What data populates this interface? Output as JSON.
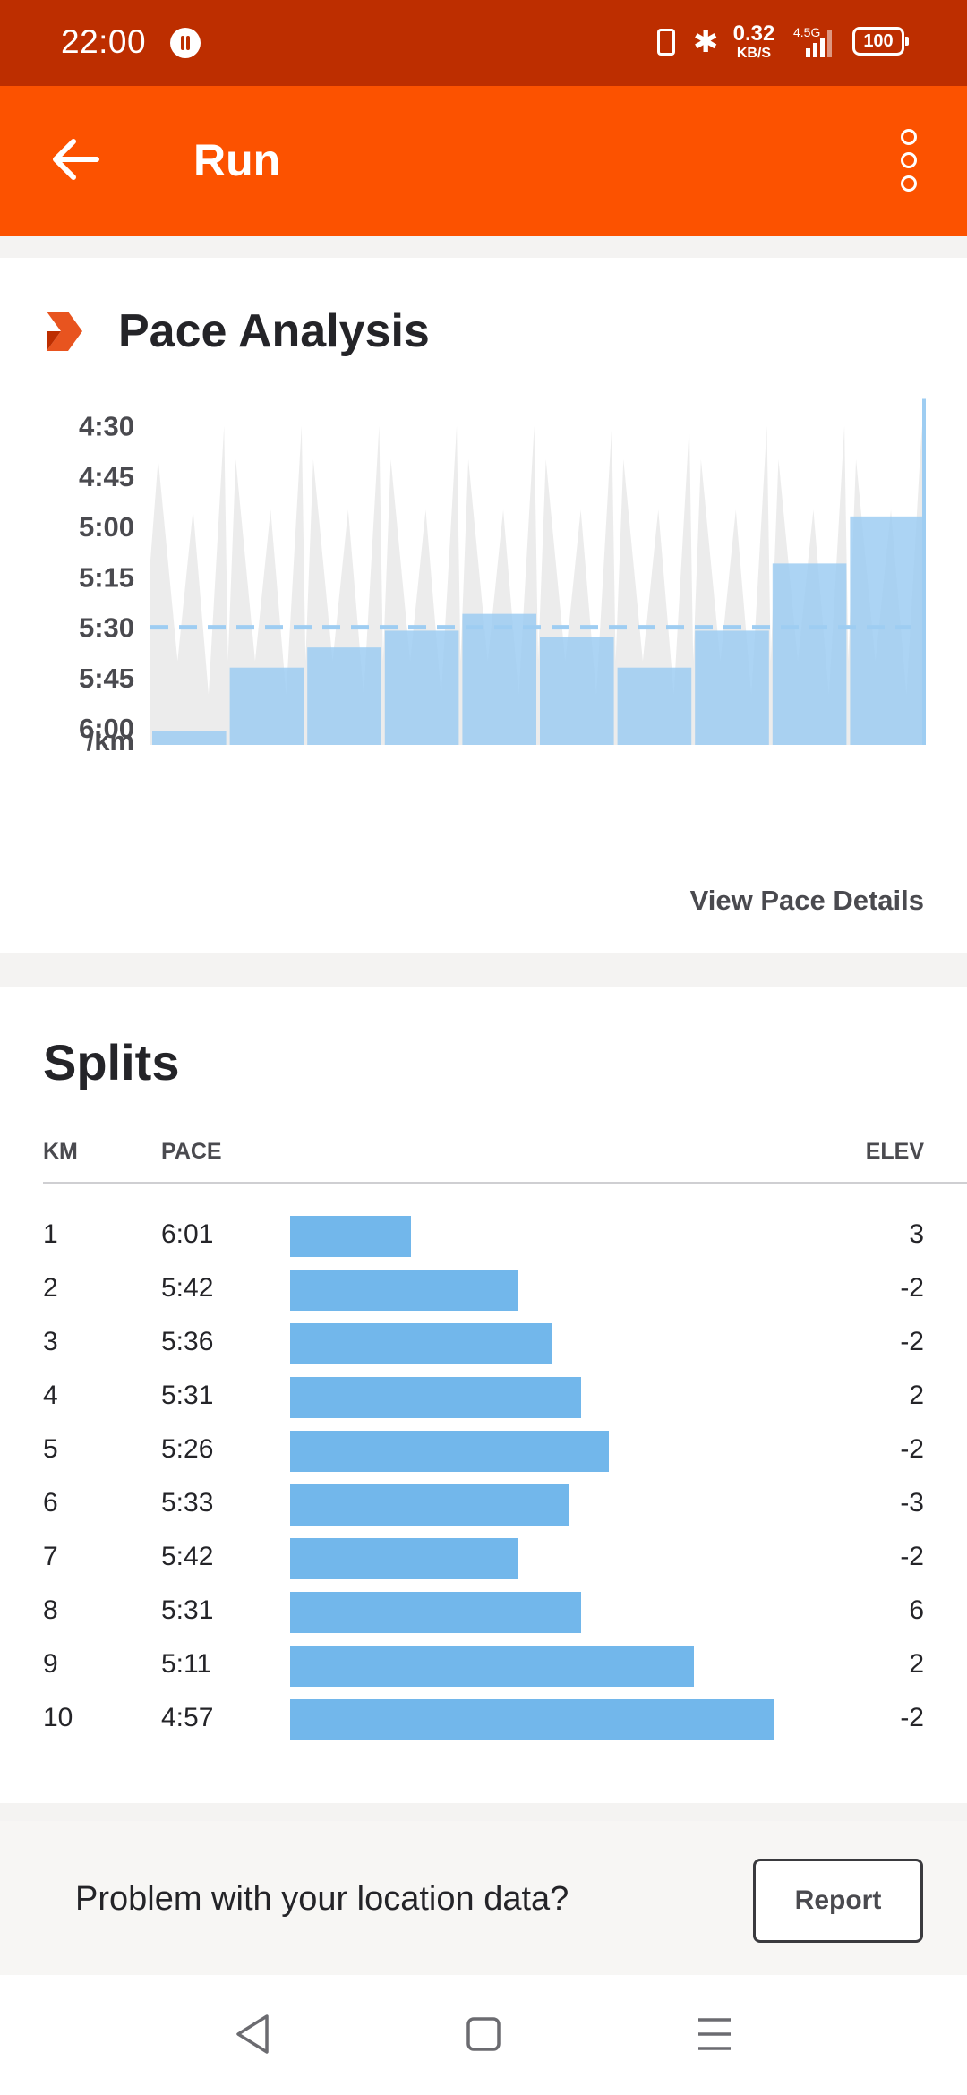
{
  "status_bar": {
    "time": "22:00",
    "net_speed_value": "0.32",
    "net_speed_unit": "KB/S",
    "network_type": "4.5G",
    "battery": "100"
  },
  "app_bar": {
    "title": "Run"
  },
  "pace_analysis": {
    "title": "Pace Analysis",
    "view_details_label": "View Pace Details",
    "chart_data": {
      "type": "bar",
      "title": "Pace Analysis",
      "y_tick_labels": [
        "4:30",
        "4:45",
        "5:00",
        "5:15",
        "5:30",
        "5:45",
        "6:00"
      ],
      "y_unit_label": "/km",
      "y_range_seconds_per_km": [
        260,
        365
      ],
      "average_pace_seconds_per_km": 330,
      "categories": [
        "1",
        "2",
        "3",
        "4",
        "5",
        "6",
        "7",
        "8",
        "9",
        "10"
      ],
      "values_seconds_per_km": [
        361,
        342,
        336,
        331,
        326,
        333,
        342,
        331,
        311,
        297
      ],
      "colors": {
        "bar": "#9ecdf2",
        "avg_line": "#9ecdf2",
        "background_trace": "#ececec"
      }
    }
  },
  "splits": {
    "title": "Splits",
    "headers": {
      "km": "KM",
      "pace": "PACE",
      "elev": "ELEV"
    },
    "rows": [
      {
        "km": "1",
        "pace": "6:01",
        "elev": "3"
      },
      {
        "km": "2",
        "pace": "5:42",
        "elev": "-2"
      },
      {
        "km": "3",
        "pace": "5:36",
        "elev": "-2"
      },
      {
        "km": "4",
        "pace": "5:31",
        "elev": "2"
      },
      {
        "km": "5",
        "pace": "5:26",
        "elev": "-2"
      },
      {
        "km": "6",
        "pace": "5:33",
        "elev": "-3"
      },
      {
        "km": "7",
        "pace": "5:42",
        "elev": "-2"
      },
      {
        "km": "8",
        "pace": "5:31",
        "elev": "6"
      },
      {
        "km": "9",
        "pace": "5:11",
        "elev": "2"
      },
      {
        "km": "10",
        "pace": "4:57",
        "elev": "-2"
      }
    ],
    "bar_color": "#72b7eb"
  },
  "report": {
    "question": "Problem with your location data?",
    "button_label": "Report"
  },
  "colors": {
    "brand": "#fc5200",
    "status_bar": "#bd2e00"
  }
}
